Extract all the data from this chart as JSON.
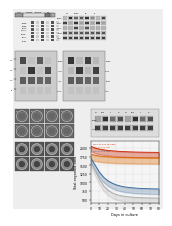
{
  "bg_color": "#f0f0f0",
  "wb_dark": "#1a1a1a",
  "wb_mid": "#555555",
  "wb_light": "#aaaaaa",
  "wb_bg": "#cccccc",
  "mic_bg": "#777777",
  "mic_bright": "#cccccc",
  "line_colors": {
    "red": "#cc2200",
    "orange": "#dd6600",
    "blue": "#336699",
    "gray": "#aaaaaa"
  },
  "graph_x": [
    0,
    5,
    10,
    15,
    20,
    25,
    30,
    35,
    40,
    45,
    50,
    55,
    60,
    65,
    70,
    75,
    80
  ],
  "graph_y_red": [
    2050,
    2000,
    1970,
    1950,
    1930,
    1920,
    1910,
    1900,
    1895,
    1890,
    1885,
    1882,
    1880,
    1878,
    1876,
    1875,
    1874
  ],
  "graph_y_red_lo": [
    1900,
    1850,
    1820,
    1800,
    1780,
    1770,
    1760,
    1750,
    1745,
    1740,
    1735,
    1732,
    1730,
    1728,
    1726,
    1725,
    1724
  ],
  "graph_y_ora": [
    1820,
    1790,
    1770,
    1755,
    1745,
    1738,
    1732,
    1728,
    1725,
    1722,
    1720,
    1718,
    1717,
    1716,
    1715,
    1714,
    1713
  ],
  "graph_y_ora_lo": [
    1650,
    1620,
    1600,
    1585,
    1575,
    1568,
    1562,
    1558,
    1555,
    1552,
    1550,
    1548,
    1547,
    1546,
    1545,
    1544,
    1543
  ],
  "graph_y_blu": [
    1700,
    1500,
    1300,
    1150,
    1050,
    980,
    930,
    895,
    870,
    855,
    842,
    833,
    826,
    821,
    817,
    814,
    812
  ],
  "graph_y_blu_lo": [
    1550,
    1350,
    1150,
    1000,
    900,
    830,
    780,
    745,
    720,
    705,
    692,
    683,
    676,
    671,
    667,
    664,
    662
  ],
  "graph_y_gry": [
    1600,
    1350,
    1100,
    900,
    780,
    700,
    650,
    618,
    597,
    582,
    572,
    564,
    558,
    554,
    551,
    549,
    547
  ],
  "graph_y_gry_lo": [
    1450,
    1200,
    950,
    750,
    630,
    550,
    500,
    468,
    447,
    432,
    422,
    414,
    408,
    404,
    401,
    399,
    397
  ],
  "ylim": [
    400,
    2200
  ],
  "xlim": [
    0,
    80
  ],
  "yticks": [
    500,
    750,
    1000,
    1250,
    1500,
    1750,
    2000
  ],
  "xticks": [
    0,
    10,
    20,
    30,
    40,
    50,
    60,
    70,
    80
  ]
}
